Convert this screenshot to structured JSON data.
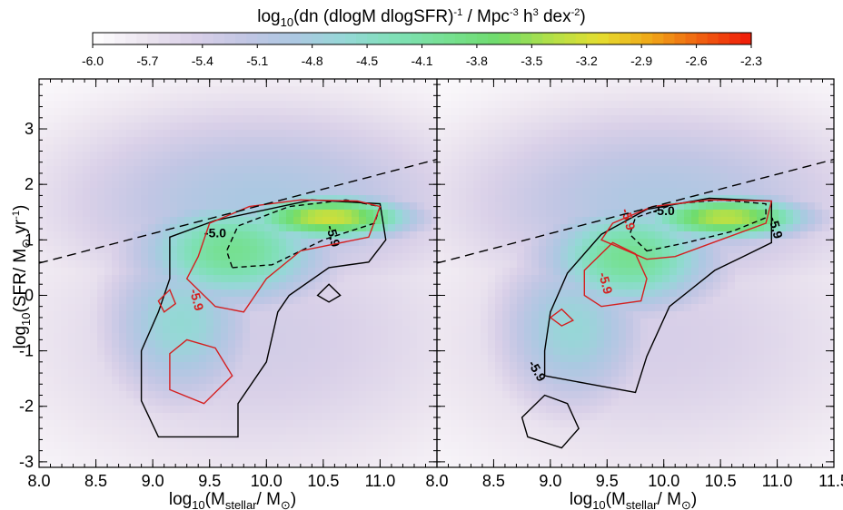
{
  "chart_data": {
    "type": "heatmap",
    "colorbar": {
      "title_main": "log",
      "title_sub": "10",
      "title_rest": "(dn (dlogM dlogSFR)",
      "title_sup1": "-1",
      "title_mid": " / Mpc",
      "title_sup2": "-3",
      "title_h": " h",
      "title_sup3": "3",
      "title_dex": " dex",
      "title_sup4": "-2",
      "title_close": ")",
      "min": -6.0,
      "max": -2.3,
      "ticks": [
        "-6.0",
        "-5.7",
        "-5.4",
        "-5.1",
        "-4.8",
        "-4.5",
        "-4.1",
        "-3.8",
        "-3.5",
        "-3.2",
        "-2.9",
        "-2.6",
        "-2.3"
      ],
      "colors": [
        "#ffffff",
        "#ede6f0",
        "#d9d0e8",
        "#c2c6e4",
        "#acc8e2",
        "#95d8d6",
        "#7fe0b6",
        "#76e092",
        "#6fdc6c",
        "#b0e04a",
        "#e4de30",
        "#f0a818",
        "#f06010",
        "#f01808"
      ]
    },
    "xlabel": {
      "pre": "log",
      "sub": "10",
      "open": "(M",
      "sub2": "stellar",
      "post": "/ M",
      "odot": "⊙",
      "close": ")"
    },
    "ylabel": {
      "pre": "log",
      "sub": "10",
      "open": "(SFR/ M",
      "odot": "⊙",
      "yr": " yr",
      "sup": "-1",
      "close": ")"
    },
    "xlim": [
      8.0,
      11.5
    ],
    "ylim": [
      -3.1,
      3.9
    ],
    "xticks_left": [
      "8.0",
      "8.5",
      "9.0",
      "9.5",
      "10.0",
      "10.5",
      "11.0"
    ],
    "xticks_right": [
      "8.0",
      "8.5",
      "9.0",
      "9.5",
      "10.0",
      "10.5",
      "11.0",
      "11.5"
    ],
    "yticks": [
      "3",
      "2",
      "1",
      "0",
      "-1",
      "-2",
      "-3"
    ],
    "dashed_line": {
      "x": [
        8.0,
        11.5
      ],
      "y": [
        0.58,
        2.45
      ]
    },
    "panels": [
      {
        "name": "left",
        "density": [
          {
            "x": 10.55,
            "y": 1.4,
            "sx": 0.55,
            "sy": 0.3,
            "amp": 2.75
          },
          {
            "x": 9.7,
            "y": 0.8,
            "sx": 0.65,
            "sy": 0.75,
            "amp": 2.0
          },
          {
            "x": 9.25,
            "y": -0.5,
            "sx": 0.5,
            "sy": 1.1,
            "amp": 1.45
          },
          {
            "x": 9.95,
            "y": 1.7,
            "sx": 1.3,
            "sy": 1.2,
            "amp": 1.15
          },
          {
            "x": 9.9,
            "y": -0.8,
            "sx": 1.5,
            "sy": 1.8,
            "amp": 0.65
          }
        ],
        "contours": [
          {
            "color": "#000000",
            "dash": false,
            "label": "-5.9",
            "label_at": [
              10.55,
              1.05
            ],
            "label_rot": 75,
            "points": [
              [
                9.05,
                -2.55
              ],
              [
                9.75,
                -2.55
              ],
              [
                9.75,
                -1.95
              ],
              [
                10.0,
                -1.2
              ],
              [
                10.1,
                -0.3
              ],
              [
                10.2,
                0.0
              ],
              [
                10.55,
                0.5
              ],
              [
                10.9,
                0.6
              ],
              [
                11.05,
                1.0
              ],
              [
                11.0,
                1.65
              ],
              [
                10.4,
                1.72
              ],
              [
                9.55,
                1.35
              ],
              [
                9.15,
                1.05
              ],
              [
                9.15,
                0.3
              ],
              [
                9.05,
                -0.3
              ],
              [
                8.9,
                -1.0
              ],
              [
                8.9,
                -1.9
              ]
            ]
          },
          {
            "color": "#000000",
            "dash": false,
            "label": "",
            "points": [
              [
                10.45,
                0.0
              ],
              [
                10.55,
                0.2
              ],
              [
                10.65,
                0.0
              ],
              [
                10.55,
                -0.12
              ]
            ]
          },
          {
            "color": "#000000",
            "dash": true,
            "label": "-5.0",
            "label_at": [
              9.55,
              1.05
            ],
            "label_rot": 0,
            "points": [
              [
                9.7,
                0.5
              ],
              [
                10.05,
                0.55
              ],
              [
                10.5,
                1.0
              ],
              [
                10.95,
                1.3
              ],
              [
                11.0,
                1.6
              ],
              [
                10.7,
                1.72
              ],
              [
                10.2,
                1.6
              ],
              [
                9.75,
                1.25
              ],
              [
                9.65,
                0.8
              ]
            ]
          },
          {
            "color": "#d42020",
            "dash": false,
            "label": "-5.9",
            "label_at": [
              9.35,
              -0.1
            ],
            "label_rot": 75,
            "points": [
              [
                9.3,
                0.3
              ],
              [
                9.55,
                -0.2
              ],
              [
                9.8,
                -0.3
              ],
              [
                10.0,
                0.3
              ],
              [
                10.3,
                0.8
              ],
              [
                10.9,
                1.05
              ],
              [
                11.0,
                1.6
              ],
              [
                10.8,
                1.7
              ],
              [
                10.3,
                1.72
              ],
              [
                9.85,
                1.6
              ],
              [
                9.5,
                1.3
              ],
              [
                9.4,
                0.7
              ]
            ]
          },
          {
            "color": "#d42020",
            "dash": false,
            "label": "",
            "points": [
              [
                9.05,
                -0.1
              ],
              [
                9.15,
                0.1
              ],
              [
                9.2,
                -0.15
              ],
              [
                9.1,
                -0.3
              ]
            ]
          },
          {
            "color": "#d42020",
            "dash": false,
            "label": "",
            "points": [
              [
                9.15,
                -1.7
              ],
              [
                9.45,
                -1.95
              ],
              [
                9.7,
                -1.45
              ],
              [
                9.55,
                -0.95
              ],
              [
                9.3,
                -0.8
              ],
              [
                9.15,
                -1.05
              ]
            ]
          }
        ]
      },
      {
        "name": "right",
        "density": [
          {
            "x": 10.55,
            "y": 1.4,
            "sx": 0.55,
            "sy": 0.3,
            "amp": 2.65
          },
          {
            "x": 9.7,
            "y": 0.7,
            "sx": 0.6,
            "sy": 0.75,
            "amp": 2.0
          },
          {
            "x": 9.2,
            "y": -0.6,
            "sx": 0.5,
            "sy": 1.1,
            "amp": 1.4
          },
          {
            "x": 9.95,
            "y": 1.7,
            "sx": 1.3,
            "sy": 1.2,
            "amp": 1.1
          },
          {
            "x": 9.9,
            "y": -0.8,
            "sx": 1.5,
            "sy": 1.8,
            "amp": 0.6
          }
        ],
        "contours": [
          {
            "color": "#000000",
            "dash": false,
            "label": "-5.9",
            "label_at": [
              8.85,
              -1.4
            ],
            "label_rot": 60,
            "points": [
              [
                8.95,
                -1.45
              ],
              [
                9.35,
                -1.6
              ],
              [
                9.75,
                -1.75
              ],
              [
                9.85,
                -1.1
              ],
              [
                10.05,
                -0.2
              ],
              [
                10.45,
                0.45
              ],
              [
                10.7,
                0.7
              ],
              [
                10.95,
                0.95
              ],
              [
                10.95,
                1.7
              ],
              [
                10.4,
                1.75
              ],
              [
                9.85,
                1.55
              ],
              [
                9.45,
                1.1
              ],
              [
                9.15,
                0.4
              ],
              [
                9.0,
                -0.3
              ],
              [
                8.95,
                -1.0
              ]
            ]
          },
          {
            "color": "#000000",
            "dash": false,
            "label": "-5.9",
            "label_at": [
              10.95,
              1.2
            ],
            "label_rot": 75,
            "points": []
          },
          {
            "color": "#000000",
            "dash": false,
            "label": "",
            "points": [
              [
                8.75,
                -2.2
              ],
              [
                8.95,
                -1.8
              ],
              [
                9.15,
                -1.95
              ],
              [
                9.25,
                -2.4
              ],
              [
                9.1,
                -2.75
              ],
              [
                8.8,
                -2.55
              ]
            ]
          },
          {
            "color": "#000000",
            "dash": true,
            "label": "-5.0",
            "label_at": [
              10.0,
              1.45
            ],
            "label_rot": 0,
            "points": [
              [
                9.85,
                0.8
              ],
              [
                10.2,
                0.95
              ],
              [
                10.6,
                1.15
              ],
              [
                10.9,
                1.4
              ],
              [
                10.9,
                1.65
              ],
              [
                10.5,
                1.72
              ],
              [
                10.1,
                1.65
              ],
              [
                9.75,
                1.4
              ],
              [
                9.7,
                1.1
              ]
            ]
          },
          {
            "color": "#d42020",
            "dash": false,
            "label": "-5.9",
            "label_at": [
              9.65,
              1.35
            ],
            "label_rot": 75,
            "points": [
              [
                9.45,
                1.0
              ],
              [
                9.85,
                0.65
              ],
              [
                10.1,
                0.7
              ],
              [
                10.5,
                1.0
              ],
              [
                10.9,
                1.3
              ],
              [
                10.95,
                1.7
              ],
              [
                10.4,
                1.72
              ],
              [
                9.9,
                1.6
              ],
              [
                9.55,
                1.3
              ]
            ]
          },
          {
            "color": "#d42020",
            "dash": false,
            "label": "-5.9",
            "label_at": [
              9.45,
              0.2
            ],
            "label_rot": 75,
            "points": [
              [
                9.3,
                0.45
              ],
              [
                9.55,
                0.95
              ],
              [
                9.75,
                0.75
              ],
              [
                9.85,
                0.3
              ],
              [
                9.8,
                -0.1
              ],
              [
                9.45,
                -0.2
              ],
              [
                9.3,
                0.0
              ]
            ]
          },
          {
            "color": "#d42020",
            "dash": false,
            "label": "",
            "points": [
              [
                9.0,
                -0.4
              ],
              [
                9.1,
                -0.25
              ],
              [
                9.2,
                -0.45
              ],
              [
                9.1,
                -0.55
              ]
            ]
          }
        ]
      }
    ]
  }
}
